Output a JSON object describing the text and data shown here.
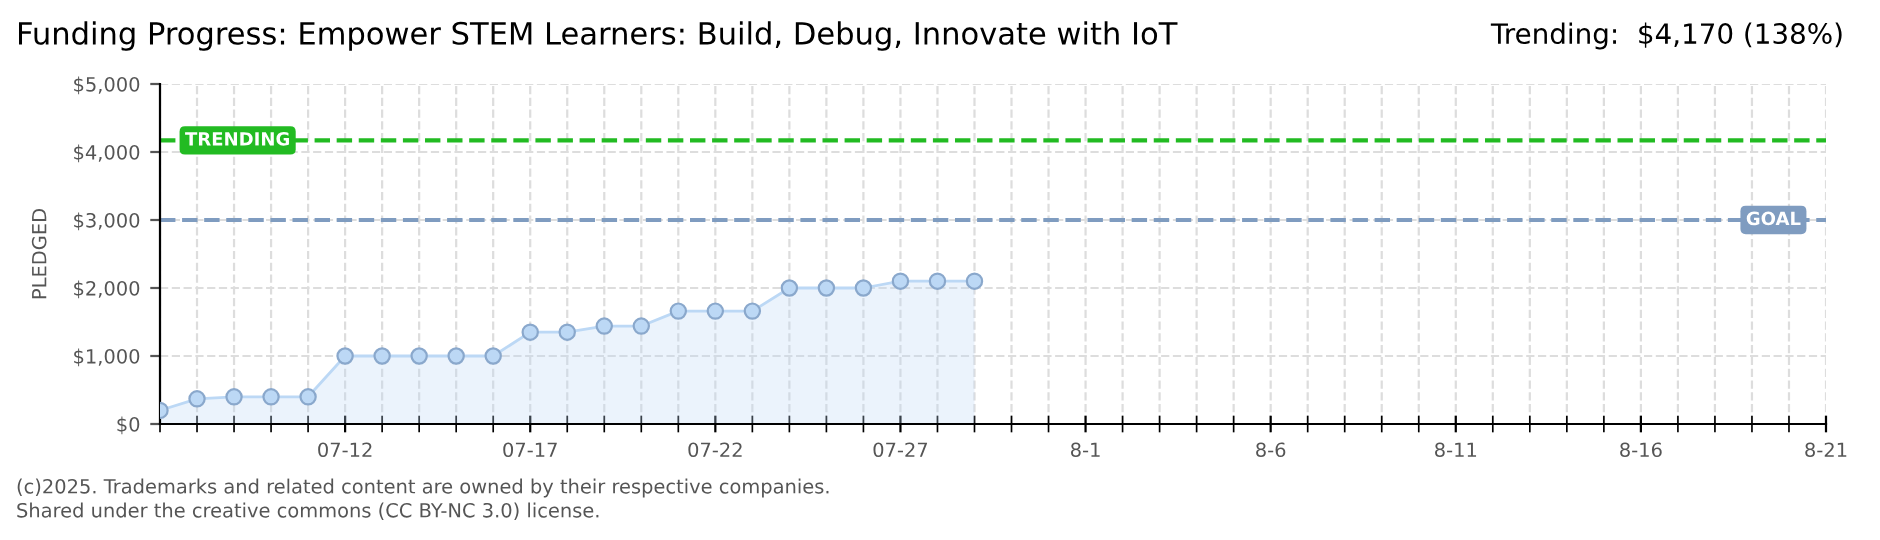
{
  "chart_data": {
    "type": "area",
    "title": "Funding Progress: Empower STEM Learners: Build, Debug, Innovate with IoT",
    "subtitle": "Trending:  $4,170 (138%)",
    "ylabel": "PLEDGED",
    "x": [
      "2025-07-07",
      "2025-07-08",
      "2025-07-09",
      "2025-07-10",
      "2025-07-11",
      "2025-07-12",
      "2025-07-13",
      "2025-07-14",
      "2025-07-15",
      "2025-07-16",
      "2025-07-17",
      "2025-07-18",
      "2025-07-19",
      "2025-07-20",
      "2025-07-21",
      "2025-07-22",
      "2025-07-23",
      "2025-07-24",
      "2025-07-25",
      "2025-07-26",
      "2025-07-27",
      "2025-07-28",
      "2025-07-29"
    ],
    "series": [
      {
        "color": "#bcd8f5",
        "values": [
          200,
          370,
          400,
          400,
          400,
          1000,
          1000,
          1000,
          1000,
          1000,
          1350,
          1350,
          1440,
          1440,
          1660,
          1660,
          1660,
          2000,
          2000,
          2000,
          2100,
          2100,
          2100
        ]
      }
    ],
    "marker": "circle",
    "grid": true,
    "xlim": [
      "2025-07-07",
      "2025-08-21"
    ],
    "xticks": [
      {
        "value": "2025-07-12",
        "label": "07-12"
      },
      {
        "value": "2025-07-17",
        "label": "07-17"
      },
      {
        "value": "2025-07-22",
        "label": "07-22"
      },
      {
        "value": "2025-07-27",
        "label": "07-27"
      },
      {
        "value": "2025-08-01",
        "label": "8-1"
      },
      {
        "value": "2025-08-06",
        "label": "8-6"
      },
      {
        "value": "2025-08-11",
        "label": "8-11"
      },
      {
        "value": "2025-08-16",
        "label": "8-16"
      },
      {
        "value": "2025-08-21",
        "label": "8-21"
      }
    ],
    "ylim": [
      0,
      5000
    ],
    "yticks": [
      {
        "value": 0,
        "label": "$0"
      },
      {
        "value": 1000,
        "label": "$1,000"
      },
      {
        "value": 2000,
        "label": "$2,000"
      },
      {
        "value": 3000,
        "label": "$3,000"
      },
      {
        "value": 4000,
        "label": "$4,000"
      },
      {
        "value": 5000,
        "label": "$5,000"
      }
    ],
    "ref_lines": [
      {
        "axis": "y",
        "value": 4170,
        "label": "TRENDING",
        "color": "#22bb22",
        "line_style": "dashed"
      },
      {
        "axis": "y",
        "value": 3000,
        "label": "GOAL",
        "color": "#7f9cc0",
        "line_style": "dashed"
      }
    ],
    "annotations": [
      "(c)2025. Trademarks and related content are owned by their respective companies.",
      "Shared under the creative commons (CC BY-NC 3.0) license."
    ]
  }
}
